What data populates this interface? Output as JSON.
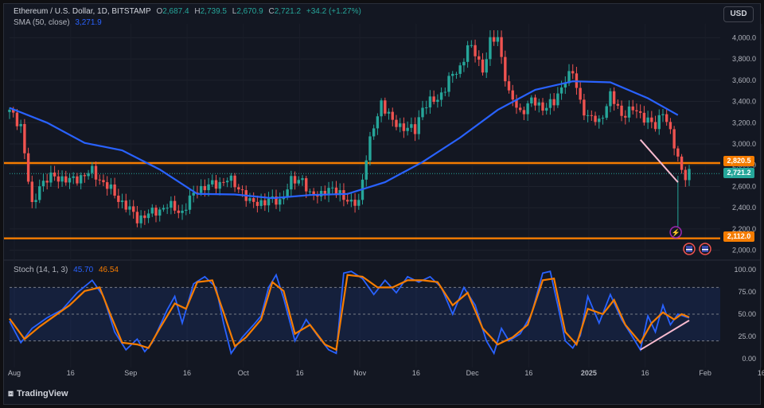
{
  "header": {
    "symbol": "Ethereum / U.S. Dollar, 1D, BITSTAMP",
    "open_label": "O",
    "open": "2,687.4",
    "high_label": "H",
    "high": "2,739.5",
    "low_label": "L",
    "low": "2,670.9",
    "close_label": "C",
    "close": "2,721.2",
    "change": "+34.2 (+1.27%)",
    "sma_label": "SMA (50, close)",
    "sma_value": "3,271.9",
    "stoch_label": "Stoch (14, 1, 3)",
    "stoch_k": "45.70",
    "stoch_d": "46.54"
  },
  "currency_button": "USD",
  "brand": "TradingView",
  "price_tags": {
    "resistance": "2,820.5",
    "last": "2,721.2",
    "support": "2,112.0"
  },
  "colors": {
    "background": "#131722",
    "up_candle": "#26a69a",
    "down_candle": "#ef5350",
    "sma": "#2962ff",
    "stoch_k": "#2962ff",
    "stoch_d": "#f57c00",
    "level_lines": "#f57c00",
    "trendlines": "#f8bbd0"
  },
  "chart_data": [
    {
      "type": "candlestick",
      "title": "Ethereum / U.S. Dollar, 1D, BITSTAMP",
      "x_ticks": [
        "Aug",
        "16",
        "Sep",
        "16",
        "Oct",
        "16",
        "Nov",
        "16",
        "Dec",
        "16",
        "2025",
        "16",
        "Feb",
        "16"
      ],
      "y_ticks": [
        2000,
        2200,
        2400,
        2600,
        2800,
        3000,
        3200,
        3400,
        3600,
        3800,
        4000
      ],
      "ylim": [
        1960,
        4130
      ],
      "close_path": [
        {
          "t": 0,
          "p": 3300
        },
        {
          "t": 3,
          "p": 3180
        },
        {
          "t": 5,
          "p": 2650
        },
        {
          "t": 6,
          "p": 2400
        },
        {
          "t": 8,
          "p": 2620
        },
        {
          "t": 12,
          "p": 2700
        },
        {
          "t": 16,
          "p": 2650
        },
        {
          "t": 22,
          "p": 2740
        },
        {
          "t": 26,
          "p": 2600
        },
        {
          "t": 30,
          "p": 2450
        },
        {
          "t": 34,
          "p": 2300
        },
        {
          "t": 38,
          "p": 2350
        },
        {
          "t": 42,
          "p": 2420
        },
        {
          "t": 46,
          "p": 2360
        },
        {
          "t": 50,
          "p": 2580
        },
        {
          "t": 55,
          "p": 2620
        },
        {
          "t": 58,
          "p": 2670
        },
        {
          "t": 62,
          "p": 2560
        },
        {
          "t": 64,
          "p": 2440
        },
        {
          "t": 68,
          "p": 2460
        },
        {
          "t": 72,
          "p": 2470
        },
        {
          "t": 75,
          "p": 2640
        },
        {
          "t": 78,
          "p": 2680
        },
        {
          "t": 80,
          "p": 2500
        },
        {
          "t": 84,
          "p": 2560
        },
        {
          "t": 88,
          "p": 2550
        },
        {
          "t": 91,
          "p": 2420
        },
        {
          "t": 93,
          "p": 2470
        },
        {
          "t": 95,
          "p": 2880
        },
        {
          "t": 97,
          "p": 3150
        },
        {
          "t": 99,
          "p": 3400
        },
        {
          "t": 102,
          "p": 3200
        },
        {
          "t": 106,
          "p": 3150
        },
        {
          "t": 108,
          "p": 3120
        },
        {
          "t": 110,
          "p": 3360
        },
        {
          "t": 114,
          "p": 3420
        },
        {
          "t": 117,
          "p": 3600
        },
        {
          "t": 120,
          "p": 3720
        },
        {
          "t": 122,
          "p": 3920
        },
        {
          "t": 124,
          "p": 3850
        },
        {
          "t": 126,
          "p": 3700
        },
        {
          "t": 128,
          "p": 3950
        },
        {
          "t": 130,
          "p": 4000
        },
        {
          "t": 133,
          "p": 3460
        },
        {
          "t": 136,
          "p": 3300
        },
        {
          "t": 139,
          "p": 3400
        },
        {
          "t": 142,
          "p": 3350
        },
        {
          "t": 145,
          "p": 3380
        },
        {
          "t": 148,
          "p": 3620
        },
        {
          "t": 150,
          "p": 3660
        },
        {
          "t": 152,
          "p": 3400
        },
        {
          "t": 154,
          "p": 3250
        },
        {
          "t": 157,
          "p": 3210
        },
        {
          "t": 160,
          "p": 3450
        },
        {
          "t": 163,
          "p": 3280
        },
        {
          "t": 166,
          "p": 3320
        },
        {
          "t": 169,
          "p": 3260
        },
        {
          "t": 172,
          "p": 3150
        },
        {
          "t": 174,
          "p": 3330
        },
        {
          "t": 176,
          "p": 3100
        },
        {
          "t": 178,
          "p": 2850
        },
        {
          "t": 179,
          "p": 2780
        },
        {
          "t": 180,
          "p": 2700
        },
        {
          "t": 181,
          "p": 2721
        }
      ],
      "series": [
        {
          "name": "SMA (50, close)",
          "values": [
            {
              "t": 0,
              "p": 3340
            },
            {
              "t": 10,
              "p": 3200
            },
            {
              "t": 20,
              "p": 3010
            },
            {
              "t": 30,
              "p": 2940
            },
            {
              "t": 40,
              "p": 2760
            },
            {
              "t": 50,
              "p": 2530
            },
            {
              "t": 60,
              "p": 2525
            },
            {
              "t": 70,
              "p": 2490
            },
            {
              "t": 80,
              "p": 2520
            },
            {
              "t": 90,
              "p": 2530
            },
            {
              "t": 100,
              "p": 2640
            },
            {
              "t": 110,
              "p": 2830
            },
            {
              "t": 120,
              "p": 3060
            },
            {
              "t": 130,
              "p": 3320
            },
            {
              "t": 140,
              "p": 3510
            },
            {
              "t": 150,
              "p": 3590
            },
            {
              "t": 160,
              "p": 3580
            },
            {
              "t": 170,
              "p": 3430
            },
            {
              "t": 178,
              "p": 3271.9
            }
          ]
        }
      ],
      "horizontal_levels": [
        2820.5,
        2112.0
      ],
      "last_price": 2721.2,
      "trendline": [
        {
          "t": 168,
          "p": 3040
        },
        {
          "t": 178,
          "p": 2640
        }
      ]
    },
    {
      "type": "line",
      "title": "Stoch (14, 1, 3)",
      "y_ticks": [
        0,
        25,
        50,
        75,
        100
      ],
      "ylim": [
        -8,
        108
      ],
      "band": [
        20,
        80
      ],
      "series": [
        {
          "name": "%K",
          "values": [
            {
              "t": 0,
              "v": 42
            },
            {
              "t": 3,
              "v": 18
            },
            {
              "t": 6,
              "v": 34
            },
            {
              "t": 10,
              "v": 46
            },
            {
              "t": 14,
              "v": 55
            },
            {
              "t": 18,
              "v": 74
            },
            {
              "t": 22,
              "v": 88
            },
            {
              "t": 25,
              "v": 70
            },
            {
              "t": 28,
              "v": 30
            },
            {
              "t": 31,
              "v": 10
            },
            {
              "t": 34,
              "v": 22
            },
            {
              "t": 36,
              "v": 8
            },
            {
              "t": 38,
              "v": 18
            },
            {
              "t": 42,
              "v": 55
            },
            {
              "t": 44,
              "v": 70
            },
            {
              "t": 46,
              "v": 40
            },
            {
              "t": 49,
              "v": 84
            },
            {
              "t": 52,
              "v": 92
            },
            {
              "t": 55,
              "v": 80
            },
            {
              "t": 57,
              "v": 40
            },
            {
              "t": 59,
              "v": 6
            },
            {
              "t": 62,
              "v": 24
            },
            {
              "t": 65,
              "v": 38
            },
            {
              "t": 67,
              "v": 48
            },
            {
              "t": 69,
              "v": 80
            },
            {
              "t": 71,
              "v": 94
            },
            {
              "t": 73,
              "v": 68
            },
            {
              "t": 76,
              "v": 20
            },
            {
              "t": 79,
              "v": 44
            },
            {
              "t": 82,
              "v": 26
            },
            {
              "t": 85,
              "v": 10
            },
            {
              "t": 87,
              "v": 6
            },
            {
              "t": 89,
              "v": 96
            },
            {
              "t": 91,
              "v": 98
            },
            {
              "t": 94,
              "v": 90
            },
            {
              "t": 97,
              "v": 72
            },
            {
              "t": 100,
              "v": 88
            },
            {
              "t": 103,
              "v": 74
            },
            {
              "t": 106,
              "v": 92
            },
            {
              "t": 109,
              "v": 86
            },
            {
              "t": 112,
              "v": 92
            },
            {
              "t": 115,
              "v": 80
            },
            {
              "t": 118,
              "v": 50
            },
            {
              "t": 121,
              "v": 80
            },
            {
              "t": 124,
              "v": 60
            },
            {
              "t": 127,
              "v": 20
            },
            {
              "t": 129,
              "v": 6
            },
            {
              "t": 131,
              "v": 34
            },
            {
              "t": 133,
              "v": 20
            },
            {
              "t": 136,
              "v": 28
            },
            {
              "t": 139,
              "v": 50
            },
            {
              "t": 142,
              "v": 96
            },
            {
              "t": 144,
              "v": 98
            },
            {
              "t": 146,
              "v": 60
            },
            {
              "t": 148,
              "v": 20
            },
            {
              "t": 150,
              "v": 12
            },
            {
              "t": 152,
              "v": 26
            },
            {
              "t": 154,
              "v": 70
            },
            {
              "t": 157,
              "v": 40
            },
            {
              "t": 160,
              "v": 72
            },
            {
              "t": 163,
              "v": 44
            },
            {
              "t": 166,
              "v": 24
            },
            {
              "t": 168,
              "v": 10
            },
            {
              "t": 170,
              "v": 48
            },
            {
              "t": 172,
              "v": 30
            },
            {
              "t": 174,
              "v": 60
            },
            {
              "t": 176,
              "v": 38
            },
            {
              "t": 178,
              "v": 50
            },
            {
              "t": 181,
              "v": 45.7
            }
          ]
        },
        {
          "name": "%D",
          "values": [
            {
              "t": 0,
              "v": 45
            },
            {
              "t": 4,
              "v": 22
            },
            {
              "t": 8,
              "v": 36
            },
            {
              "t": 12,
              "v": 48
            },
            {
              "t": 16,
              "v": 60
            },
            {
              "t": 20,
              "v": 76
            },
            {
              "t": 24,
              "v": 80
            },
            {
              "t": 27,
              "v": 48
            },
            {
              "t": 30,
              "v": 18
            },
            {
              "t": 34,
              "v": 16
            },
            {
              "t": 37,
              "v": 12
            },
            {
              "t": 40,
              "v": 34
            },
            {
              "t": 44,
              "v": 62
            },
            {
              "t": 47,
              "v": 56
            },
            {
              "t": 50,
              "v": 86
            },
            {
              "t": 54,
              "v": 88
            },
            {
              "t": 57,
              "v": 52
            },
            {
              "t": 60,
              "v": 14
            },
            {
              "t": 63,
              "v": 24
            },
            {
              "t": 67,
              "v": 44
            },
            {
              "t": 70,
              "v": 86
            },
            {
              "t": 73,
              "v": 76
            },
            {
              "t": 76,
              "v": 28
            },
            {
              "t": 80,
              "v": 38
            },
            {
              "t": 84,
              "v": 16
            },
            {
              "t": 87,
              "v": 10
            },
            {
              "t": 90,
              "v": 94
            },
            {
              "t": 94,
              "v": 92
            },
            {
              "t": 98,
              "v": 80
            },
            {
              "t": 102,
              "v": 80
            },
            {
              "t": 106,
              "v": 88
            },
            {
              "t": 110,
              "v": 88
            },
            {
              "t": 114,
              "v": 86
            },
            {
              "t": 118,
              "v": 60
            },
            {
              "t": 122,
              "v": 74
            },
            {
              "t": 126,
              "v": 34
            },
            {
              "t": 130,
              "v": 16
            },
            {
              "t": 134,
              "v": 24
            },
            {
              "t": 138,
              "v": 38
            },
            {
              "t": 142,
              "v": 88
            },
            {
              "t": 145,
              "v": 90
            },
            {
              "t": 148,
              "v": 30
            },
            {
              "t": 151,
              "v": 16
            },
            {
              "t": 154,
              "v": 56
            },
            {
              "t": 158,
              "v": 50
            },
            {
              "t": 161,
              "v": 66
            },
            {
              "t": 164,
              "v": 38
            },
            {
              "t": 168,
              "v": 18
            },
            {
              "t": 171,
              "v": 40
            },
            {
              "t": 174,
              "v": 52
            },
            {
              "t": 177,
              "v": 44
            },
            {
              "t": 179,
              "v": 50
            },
            {
              "t": 181,
              "v": 46.54
            }
          ]
        }
      ],
      "trendline": [
        {
          "t": 168,
          "v": 10
        },
        {
          "t": 181,
          "v": 43
        }
      ]
    }
  ]
}
